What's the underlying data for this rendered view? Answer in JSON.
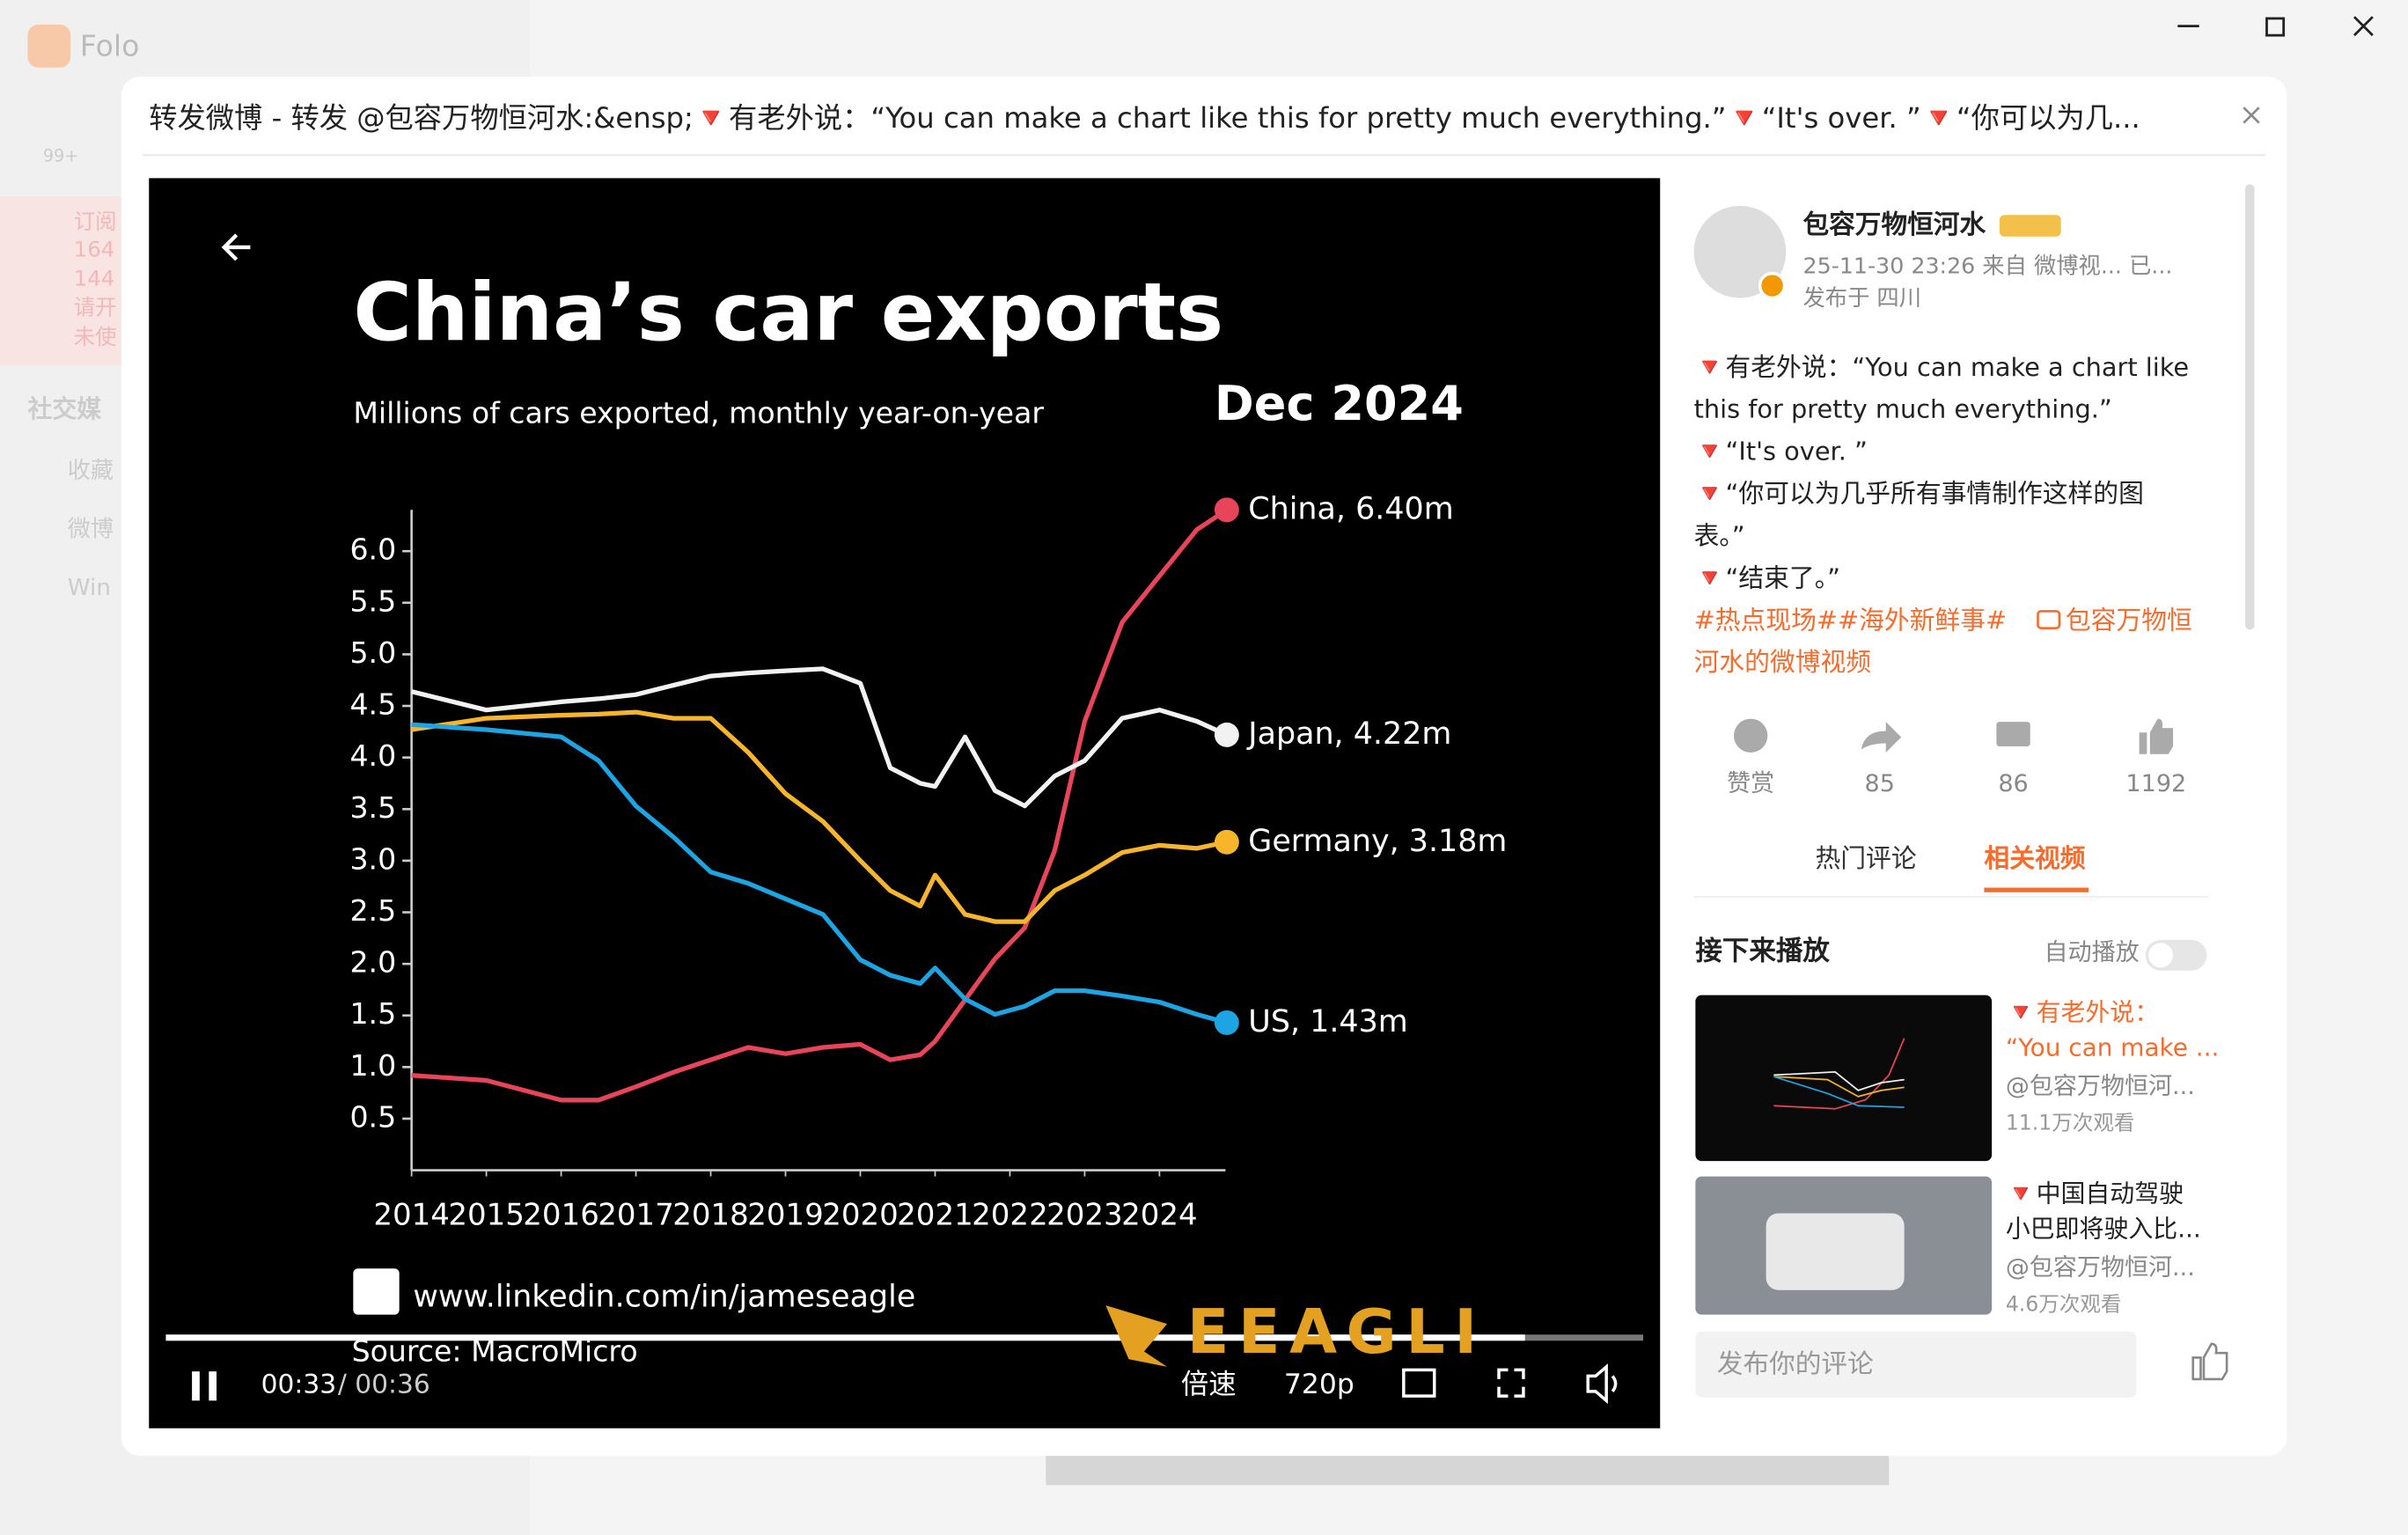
{
  "app": {
    "name": "Folo",
    "badge": "99+",
    "sidebar": [
      "订阅",
      "164",
      "144",
      "请开",
      "未使",
      "社交媒",
      "收藏",
      "微博",
      "Win"
    ]
  },
  "modal": {
    "title": "转发微博 - 转发 @包容万物恒河水:&ensp;🔻有老外说：“You can make a chart like this for pretty much everything.”🔻“It's over. ”🔻“你可以为几..."
  },
  "video": {
    "current_time": "00:33",
    "duration": "/ 00:36",
    "speed": "倍速",
    "quality": "720p",
    "chart_data": {
      "type": "line",
      "title": "China’s car exports",
      "subtitle": "Millions of cars exported, monthly year-on-year",
      "date_label": "Dec 2024",
      "x": [
        2014,
        2015,
        2016,
        2016.5,
        2017,
        2017.5,
        2018,
        2018.5,
        2019,
        2019.5,
        2020,
        2020.4,
        2020.8,
        2021,
        2021.4,
        2021.8,
        2022.2,
        2022.6,
        2023,
        2023.5,
        2024,
        2024.5,
        2024.9
      ],
      "xlim": [
        2014,
        2025
      ],
      "xticks": [
        2014,
        2015,
        2016,
        2017,
        2018,
        2019,
        2020,
        2021,
        2022,
        2023,
        2024
      ],
      "ylim": [
        0,
        6.4
      ],
      "yticks": [
        {
          "value": 6,
          "label": "6.0"
        },
        5.5,
        {
          "value": 5,
          "label": "5.0"
        },
        4.5,
        {
          "value": 4,
          "label": "4.0"
        },
        3.5,
        {
          "value": 3,
          "label": "3.0"
        },
        2.5,
        {
          "value": 2,
          "label": "2.0"
        },
        1.5,
        {
          "value": 1,
          "label": "1.0"
        },
        0.5
      ],
      "series": [
        {
          "name": "China, 6.40m",
          "color": "#e8455a",
          "values": [
            0.92,
            0.87,
            0.68,
            0.68,
            0.81,
            0.95,
            1.07,
            1.19,
            1.13,
            1.19,
            1.22,
            1.07,
            1.12,
            1.25,
            1.65,
            2.05,
            2.35,
            3.1,
            4.35,
            5.31,
            5.76,
            6.21,
            6.4
          ]
        },
        {
          "name": "Japan, 4.22m",
          "color": "#f2f2f2",
          "values": [
            4.64,
            4.46,
            4.54,
            4.57,
            4.61,
            4.7,
            4.79,
            4.82,
            4.84,
            4.86,
            4.72,
            3.9,
            3.75,
            3.72,
            4.2,
            3.68,
            3.53,
            3.82,
            3.97,
            4.38,
            4.46,
            4.35,
            4.22
          ]
        },
        {
          "name": "Germany, 3.18m",
          "color": "#f6b52b",
          "values": [
            4.27,
            4.38,
            4.41,
            4.42,
            4.44,
            4.38,
            4.38,
            4.05,
            3.65,
            3.38,
            3.0,
            2.71,
            2.56,
            2.86,
            2.48,
            2.41,
            2.41,
            2.71,
            2.86,
            3.08,
            3.15,
            3.12,
            3.18
          ]
        },
        {
          "name": "US, 1.43m",
          "color": "#1da4e2",
          "values": [
            4.32,
            4.27,
            4.2,
            3.97,
            3.53,
            3.23,
            2.89,
            2.78,
            2.63,
            2.48,
            2.04,
            1.89,
            1.81,
            1.96,
            1.66,
            1.51,
            1.59,
            1.74,
            1.74,
            1.69,
            1.63,
            1.51,
            1.43
          ]
        }
      ],
      "link": "www.linkedin.com/in/jameseagle",
      "source": "Source: MacroMicro",
      "logo": "EEAGLI"
    }
  },
  "post": {
    "author": "包容万物恒河水",
    "meta": "25-11-30 23:26 来自 微博视... 已...",
    "location": "发布于 四川",
    "lines": [
      "🔻有老外说：“You can make a chart like",
      "this for pretty much everything.”",
      "🔻“It's over. ”",
      "🔻“你可以为几乎所有事情制作这样的图",
      "表。”",
      "🔻“结束了。”"
    ],
    "hashtags": "#热点现场##海外新鲜事#",
    "video_link": [
      "包容万物恒",
      "河水的微博视频"
    ],
    "actions": [
      "赞赏",
      "85",
      "86",
      "1192"
    ],
    "tabs": [
      "热门评论",
      "相关视频"
    ]
  },
  "related": {
    "heading": "接下来播放",
    "autoplay": "自动播放",
    "items": [
      {
        "title": [
          "🔻有老外说：",
          "“You can make ..."
        ],
        "author": "@包容万物恒河...",
        "views": "11.1万次观看"
      },
      {
        "title": [
          "🔻中国自动驾驶",
          "小巴即将驶入比..."
        ],
        "author": "@包容万物恒河...",
        "views": "4.6万次观看"
      }
    ]
  },
  "comment": {
    "placeholder": "发布你的评论"
  }
}
